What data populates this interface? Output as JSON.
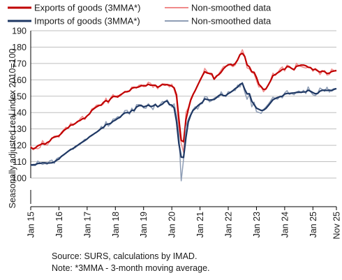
{
  "chart_data": {
    "type": "line",
    "title": "",
    "ylabel": "Seasonally adjusted real index 2010=100",
    "xlabel": "",
    "ylim": [
      90,
      190
    ],
    "yticks": [
      100,
      110,
      120,
      130,
      140,
      150,
      160,
      170,
      180,
      190
    ],
    "yticklabels": [
      "100",
      "110",
      "120",
      "130",
      "140",
      "150",
      "160",
      "170",
      "180",
      "190"
    ],
    "grid": "horizontal",
    "legend_position": "top",
    "xticklabels": [
      "Jan 15",
      "Jan 16",
      "Jan 17",
      "Jan 18",
      "Jan 19",
      "Jan 20",
      "Jan 21",
      "Jan 22",
      "Jan 23",
      "Jan 24",
      "Jan 25",
      "Nov 25"
    ],
    "xtick_month_index": [
      0,
      12,
      24,
      36,
      48,
      60,
      72,
      84,
      96,
      108,
      120,
      130
    ],
    "series": [
      {
        "name": "Exports of goods (3MMA*)",
        "color": "#c00000",
        "width": 2.2,
        "values": [
          118.7,
          117.9,
          118.4,
          119.7,
          120.3,
          121.1,
          120.6,
          121.7,
          122.4,
          124.3,
          125.0,
          125.4,
          125.8,
          127.2,
          128.9,
          130.0,
          130.8,
          132.4,
          132.5,
          133.4,
          134.6,
          135.2,
          136.2,
          136.5,
          138.0,
          139.2,
          141.4,
          142.5,
          143.5,
          144.3,
          144.6,
          146.3,
          147.3,
          146.6,
          148.5,
          149.8,
          149.9,
          149.5,
          150.7,
          151.6,
          152.6,
          152.7,
          153.2,
          154.8,
          155.3,
          155.3,
          155.7,
          156.4,
          156.5,
          156.4,
          157.3,
          156.7,
          156.7,
          156.7,
          155.5,
          156.2,
          157.2,
          156.9,
          157.1,
          156.7,
          156.2,
          155.1,
          150.8,
          136.2,
          123.0,
          122.2,
          135.6,
          141.9,
          147.4,
          150.9,
          153.6,
          156.7,
          159.6,
          162.5,
          165.0,
          164.2,
          163.9,
          163.7,
          160.4,
          162.3,
          163.2,
          164.7,
          166.8,
          168.2,
          169.1,
          169.5,
          168.9,
          170.0,
          172.2,
          175.4,
          176.2,
          174.3,
          169.2,
          167.9,
          164.9,
          164.6,
          161.5,
          157.3,
          155.8,
          154.1,
          154.4,
          156.8,
          159.4,
          162.6,
          163.2,
          164.3,
          165.2,
          166.4,
          166.4,
          168.1,
          167.9,
          166.9,
          166.2,
          168.3,
          168.6,
          169.0,
          169.0,
          168.6,
          167.7,
          167.4,
          166.1,
          166.5,
          165.5,
          164.7,
          165.4,
          165.0,
          163.9,
          164.1,
          165.1,
          165.4,
          165.7
        ]
      },
      {
        "name": "Non-smoothed data",
        "color": "#f08a8a",
        "width": 1.5,
        "values": [
          119.7,
          117.2,
          118.2,
          117.9,
          118.7,
          122.9,
          120.9,
          120.0,
          122.3,
          124.2,
          125.6,
          125.7,
          124.9,
          127.9,
          129.4,
          131.1,
          130.4,
          133.6,
          132.9,
          133.4,
          134.2,
          136.3,
          137.7,
          135.7,
          138.1,
          139.2,
          142.3,
          142.9,
          144.6,
          144.7,
          144.3,
          145.4,
          148.8,
          145.6,
          148.9,
          151.0,
          149.5,
          150.5,
          149.9,
          151.5,
          153.0,
          153.1,
          153.3,
          155.6,
          155.5,
          154.9,
          156.7,
          157.0,
          155.8,
          156.0,
          158.6,
          157.9,
          155.4,
          156.6,
          154.5,
          156.6,
          157.6,
          157.5,
          157.0,
          155.6,
          157.4,
          154.0,
          148.9,
          131.0,
          121.3,
          115.7,
          140.1,
          142.9,
          148.3,
          151.2,
          153.9,
          156.2,
          160.2,
          162.1,
          167.0,
          164.9,
          163.5,
          162.9,
          160.5,
          161.7,
          163.8,
          166.0,
          168.2,
          168.2,
          169.6,
          169.0,
          168.0,
          169.1,
          172.3,
          175.2,
          178.4,
          174.6,
          167.3,
          166.6,
          164.5,
          163.7,
          159.5,
          155.6,
          155.7,
          152.7,
          154.4,
          156.6,
          159.6,
          164.1,
          162.7,
          164.3,
          166.6,
          167.9,
          165.4,
          169.0,
          168.3,
          166.8,
          165.8,
          170.1,
          168.6,
          168.1,
          167.6,
          167.2,
          167.8,
          167.7,
          165.2,
          167.0,
          165.9,
          163.2,
          165.1,
          165.7,
          162.9,
          163.3,
          166.6,
          165.6,
          165.2
        ]
      },
      {
        "name": "Imports of goods (3MMA*)",
        "color": "#1f3864",
        "width": 2.2,
        "values": [
          108.0,
          108.1,
          108.2,
          108.9,
          109.0,
          109.3,
          109.3,
          109.1,
          109.2,
          109.3,
          109.8,
          110.9,
          111.6,
          113.2,
          114.2,
          115.3,
          116.4,
          117.5,
          117.9,
          119.2,
          120.0,
          121.1,
          122.0,
          122.9,
          123.9,
          125.2,
          126.1,
          127.1,
          128.0,
          129.1,
          130.3,
          131.0,
          132.7,
          133.0,
          133.4,
          134.7,
          135.4,
          136.4,
          137.1,
          138.7,
          139.8,
          140.0,
          139.8,
          141.4,
          141.3,
          143.4,
          144.2,
          144.3,
          143.5,
          143.9,
          144.6,
          143.7,
          144.0,
          144.9,
          143.5,
          144.4,
          145.2,
          146.6,
          147.1,
          144.8,
          144.6,
          142.8,
          134.6,
          121.1,
          112.8,
          112.6,
          124.6,
          134.3,
          138.3,
          141.3,
          142.6,
          144.1,
          145.3,
          146.2,
          148.4,
          148.0,
          147.6,
          147.8,
          148.0,
          149.1,
          150.4,
          151.1,
          150.3,
          150.4,
          151.6,
          152.4,
          153.4,
          154.7,
          155.6,
          157.2,
          157.9,
          154.2,
          151.4,
          151.5,
          147.0,
          144.9,
          142.7,
          142.0,
          141.3,
          141.5,
          142.5,
          144.2,
          146.0,
          147.8,
          148.6,
          149.2,
          149.7,
          150.0,
          151.3,
          151.7,
          151.7,
          151.9,
          152.0,
          152.3,
          152.4,
          152.4,
          152.6,
          152.6,
          153.7,
          153.0,
          152.2,
          151.5,
          151.7,
          153.1,
          153.6,
          153.7,
          153.5,
          153.7,
          153.4,
          154.2,
          154.6
        ]
      },
      {
        "name": "Non-smoothed data",
        "color": "#8e9db5",
        "width": 1.5,
        "values": [
          107.7,
          107.7,
          107.6,
          110.4,
          109.3,
          108.3,
          108.9,
          108.4,
          110.4,
          111.0,
          108.9,
          111.8,
          112.6,
          112.9,
          114.4,
          115.2,
          116.4,
          117.1,
          118.5,
          118.5,
          120.3,
          120.6,
          122.2,
          123.7,
          123.8,
          125.4,
          126.4,
          127.0,
          128.0,
          128.8,
          131.6,
          130.3,
          134.5,
          131.7,
          133.1,
          136.0,
          136.2,
          137.5,
          137.4,
          138.4,
          141.2,
          141.4,
          138.9,
          142.7,
          140.5,
          144.8,
          144.9,
          144.7,
          142.8,
          142.6,
          145.4,
          143.8,
          141.8,
          145.4,
          143.3,
          144.9,
          146.8,
          146.3,
          147.8,
          145.4,
          143.4,
          145.4,
          138.2,
          126.9,
          98.3,
          111.5,
          131.2,
          136.0,
          138.9,
          141.8,
          143.6,
          142.1,
          145.0,
          145.5,
          149.8,
          149.5,
          146.5,
          147.3,
          148.8,
          149.6,
          149.3,
          152.7,
          150.3,
          149.7,
          152.8,
          152.4,
          153.4,
          153.5,
          156.8,
          155.6,
          158.4,
          152.5,
          148.1,
          151.1,
          143.5,
          146.4,
          140.6,
          140.1,
          139.5,
          141.9,
          143.4,
          145.1,
          147.1,
          149.4,
          148.6,
          148.2,
          150.1,
          148.9,
          152.0,
          153.4,
          151.1,
          151.7,
          150.9,
          152.5,
          153.2,
          152.1,
          153.6,
          151.6,
          155.7,
          152.7,
          150.9,
          150.3,
          151.8,
          155.0,
          154.1,
          152.9,
          155.5,
          152.5,
          154.0,
          154.6,
          154.7
        ]
      }
    ]
  },
  "legend": {
    "exports_label": "Exports of goods (3MMA*)",
    "exports_raw_label": "Non-smoothed data",
    "imports_label": "Imports of goods (3MMA*)",
    "imports_raw_label": "Non-smoothed data"
  },
  "footnote": {
    "source": "Source: SURS, calculations by IMAD.",
    "note": "Note: *3MMA - 3-month moving average."
  }
}
